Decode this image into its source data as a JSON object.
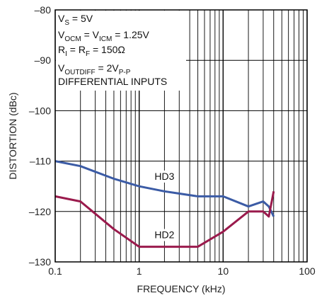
{
  "chart_data": {
    "type": "line",
    "xlabel": "FREQUENCY (kHz)",
    "ylabel": "DISTORTION (dBc)",
    "xscale": "log",
    "xlim": [
      0.1,
      100
    ],
    "ylim": [
      -130,
      -80
    ],
    "xticks": [
      {
        "value": 0.1,
        "label": "0.1"
      },
      {
        "value": 1,
        "label": "1"
      },
      {
        "value": 10,
        "label": "10"
      },
      {
        "value": 100,
        "label": "100"
      }
    ],
    "yticks": [
      {
        "value": -80,
        "label": "–80"
      },
      {
        "value": -90,
        "label": "–90"
      },
      {
        "value": -100,
        "label": "–100"
      },
      {
        "value": -110,
        "label": "–110"
      },
      {
        "value": -120,
        "label": "–120"
      },
      {
        "value": -130,
        "label": "–130"
      }
    ],
    "grid": true,
    "conditions": [
      {
        "parts": [
          {
            "t": "V"
          },
          {
            "t": "S",
            "sub": true
          },
          {
            "t": " = 5V"
          }
        ]
      },
      {
        "parts": [
          {
            "t": "V"
          },
          {
            "t": "OCM",
            "sub": true
          },
          {
            "t": " = V"
          },
          {
            "t": "ICM",
            "sub": true
          },
          {
            "t": " = 1.25V"
          }
        ]
      },
      {
        "parts": [
          {
            "t": "R"
          },
          {
            "t": "I",
            "sub": true
          },
          {
            "t": " = R"
          },
          {
            "t": "F",
            "sub": true
          },
          {
            "t": " = 150Ω"
          }
        ]
      },
      {
        "parts": [
          {
            "t": "V"
          },
          {
            "t": "OUTDIFF",
            "sub": true
          },
          {
            "t": " = 2V"
          },
          {
            "t": "P-P",
            "sub": true
          }
        ]
      },
      {
        "parts": [
          {
            "t": "DIFFERENTIAL INPUTS"
          }
        ]
      }
    ],
    "series": [
      {
        "name": "HD3",
        "color": "#3b5ba5",
        "x": [
          0.1,
          0.2,
          0.5,
          1,
          2,
          5,
          10,
          20,
          30,
          35,
          40
        ],
        "y": [
          -110,
          -111,
          -113.5,
          -115,
          -116,
          -117,
          -117,
          -119,
          -118,
          -119,
          -121
        ]
      },
      {
        "name": "HD2",
        "color": "#9a1a4c",
        "x": [
          0.1,
          0.2,
          0.5,
          1,
          2,
          5,
          10,
          20,
          30,
          35,
          40
        ],
        "y": [
          -117,
          -118,
          -123.5,
          -127,
          -127,
          -127,
          -124,
          -120,
          -120,
          -121,
          -116
        ]
      }
    ]
  }
}
